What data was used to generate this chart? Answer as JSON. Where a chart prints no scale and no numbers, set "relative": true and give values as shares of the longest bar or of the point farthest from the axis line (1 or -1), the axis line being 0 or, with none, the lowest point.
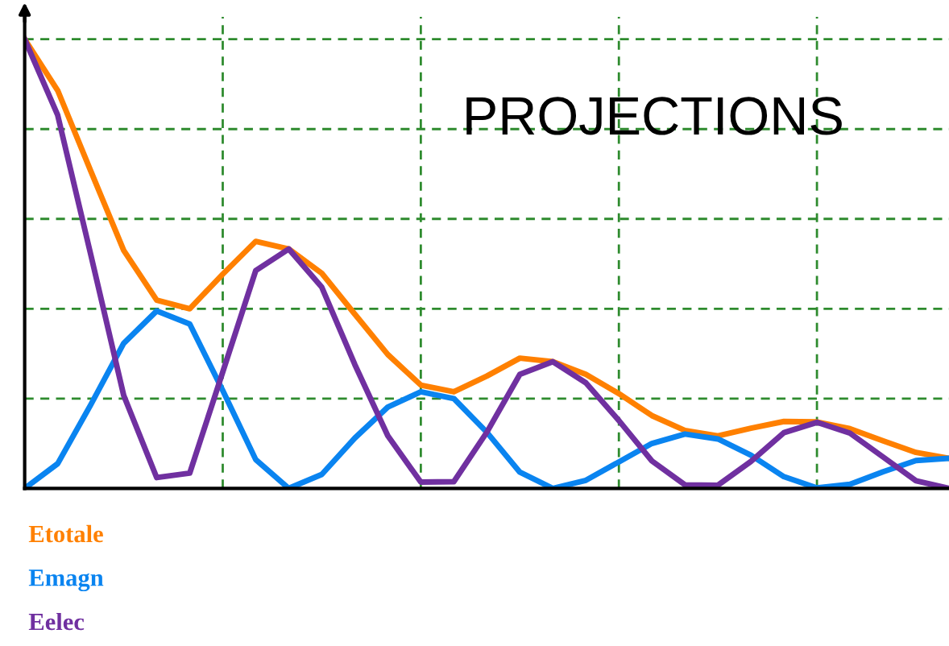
{
  "chart_data": {
    "type": "line",
    "title": "PROJECTIONS",
    "relative": true,
    "grid": true,
    "legend": "bottom",
    "line_style": "solid",
    "categories": [
      null,
      null,
      null,
      null,
      null,
      null,
      null,
      null,
      null,
      null,
      null,
      null,
      null,
      null,
      null,
      null,
      null,
      null,
      null,
      null,
      null,
      null,
      null,
      null,
      null,
      null,
      null,
      null,
      null
    ],
    "series": [
      {
        "name": "Etotale",
        "color": "#ff8000",
        "values": [
          1,
          0.886,
          0.707,
          0.53,
          0.419,
          0.4,
          0.477,
          0.55,
          0.533,
          0.479,
          0.388,
          0.298,
          0.23,
          0.215,
          0.25,
          0.29,
          0.282,
          0.254,
          0.211,
          0.162,
          0.129,
          0.117,
          0.134,
          0.149,
          0.148,
          0.133,
          0.106,
          0.08,
          0.067
        ]
      },
      {
        "name": "Emagn",
        "color": "#0a84f0",
        "values": [
          0,
          0.055,
          0.186,
          0.323,
          0.395,
          0.366,
          0.218,
          0.064,
          0,
          0.031,
          0.112,
          0.181,
          0.215,
          0.2,
          0.125,
          0.036,
          0,
          0.018,
          0.059,
          0.1,
          0.121,
          0.11,
          0.074,
          0.026,
          0.001,
          0.009,
          0.037,
          0.062,
          0.067
        ]
      },
      {
        "name": "Eelec",
        "color": "#7030a0",
        "values": [
          1,
          0.831,
          0.521,
          0.207,
          0.024,
          0.034,
          0.259,
          0.485,
          0.533,
          0.448,
          0.276,
          0.117,
          0.014,
          0.015,
          0.125,
          0.254,
          0.282,
          0.235,
          0.151,
          0.061,
          0.008,
          0.007,
          0.06,
          0.124,
          0.147,
          0.123,
          0.07,
          0.017,
          0
        ]
      }
    ]
  }
}
